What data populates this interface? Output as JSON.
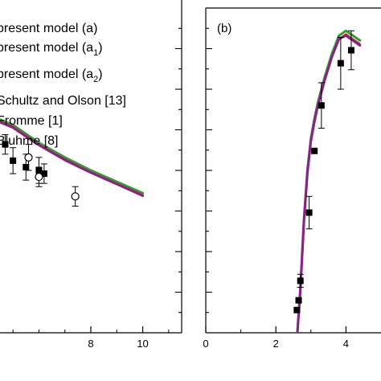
{
  "chart_data": [
    {
      "type": "line",
      "panel_label": "",
      "xlim": [
        4.5,
        11.5
      ],
      "ylim": [
        0,
        1
      ],
      "x_ticks": [
        8,
        10
      ],
      "legend": {
        "placement": "top-left",
        "entries": [
          {
            "label": "present model (a)",
            "sub": "",
            "suffix": "",
            "marker": "none"
          },
          {
            "label": "present model (a",
            "sub": "1",
            "suffix": ")",
            "marker": "none"
          },
          {
            "label": "present model (a",
            "sub": "2",
            "suffix": ")",
            "marker": "none"
          },
          {
            "label": "Schultz and Olson [13]",
            "sub": "",
            "suffix": "",
            "marker": "none"
          },
          {
            "label": "Fromme [1]",
            "sub": "",
            "suffix": "",
            "marker": "none"
          },
          {
            "label": "Bluhme [8]",
            "sub": "",
            "suffix": "",
            "marker": "none"
          }
        ]
      },
      "series": [
        {
          "color": "#2ca02c",
          "width": 3.0,
          "x": [
            4.4,
            5,
            6,
            7,
            8,
            9,
            10
          ],
          "y": [
            0.66,
            0.64,
            0.585,
            0.54,
            0.5,
            0.465,
            0.43
          ]
        },
        {
          "color": "#d62728",
          "width": 2.0,
          "x": [
            4.4,
            5,
            6,
            7,
            8,
            9,
            10
          ],
          "y": [
            0.655,
            0.635,
            0.58,
            0.535,
            0.495,
            0.46,
            0.425
          ]
        },
        {
          "color": "#8e1e8e",
          "width": 3.0,
          "x": [
            4.4,
            5,
            6,
            7,
            8,
            9,
            10
          ],
          "y": [
            0.652,
            0.632,
            0.578,
            0.532,
            0.493,
            0.458,
            0.422
          ]
        }
      ],
      "points": [
        {
          "x": 4.7,
          "y": 0.58,
          "err": 0.03,
          "marker": "square"
        },
        {
          "x": 5.0,
          "y": 0.53,
          "err": 0.04,
          "marker": "square"
        },
        {
          "x": 5.5,
          "y": 0.51,
          "err": 0.04,
          "marker": "square"
        },
        {
          "x": 6.0,
          "y": 0.5,
          "err": 0.04,
          "marker": "square"
        },
        {
          "x": 5.6,
          "y": 0.54,
          "err": 0.04,
          "marker": "circle"
        },
        {
          "x": 6.2,
          "y": 0.49,
          "err": 0.03,
          "marker": "square"
        },
        {
          "x": 6.0,
          "y": 0.48,
          "err": 0.03,
          "marker": "circle"
        },
        {
          "x": 7.4,
          "y": 0.42,
          "err": 0.03,
          "marker": "circle"
        }
      ]
    },
    {
      "type": "line",
      "panel_label": "(b)",
      "xlim": [
        0,
        5
      ],
      "ylim": [
        0,
        1
      ],
      "x_ticks": [
        0,
        2,
        4
      ],
      "series": [
        {
          "color": "#2ca02c",
          "width": 3.0,
          "x": [
            2.6,
            2.7,
            2.8,
            2.9,
            3.0,
            3.1,
            3.2,
            3.4,
            3.6,
            3.8,
            4.0,
            4.2,
            4.4
          ],
          "y": [
            -0.02,
            0.14,
            0.35,
            0.5,
            0.6,
            0.66,
            0.71,
            0.79,
            0.86,
            0.915,
            0.93,
            0.915,
            0.9
          ]
        },
        {
          "color": "#d62728",
          "width": 2.0,
          "x": [
            2.6,
            2.7,
            2.8,
            2.9,
            3.0,
            3.1,
            3.2,
            3.4,
            3.6,
            3.8,
            4.0,
            4.2,
            4.4
          ],
          "y": [
            -0.02,
            0.13,
            0.34,
            0.49,
            0.59,
            0.65,
            0.7,
            0.78,
            0.85,
            0.905,
            0.92,
            0.905,
            0.89
          ]
        },
        {
          "color": "#8e1e8e",
          "width": 3.0,
          "x": [
            2.6,
            2.7,
            2.8,
            2.9,
            3.0,
            3.1,
            3.2,
            3.4,
            3.6,
            3.8,
            4.0,
            4.2,
            4.4
          ],
          "y": [
            -0.02,
            0.13,
            0.34,
            0.49,
            0.59,
            0.65,
            0.7,
            0.78,
            0.85,
            0.905,
            0.915,
            0.9,
            0.885
          ]
        }
      ],
      "points": [
        {
          "x": 2.6,
          "y": 0.07,
          "err": 0.0,
          "marker": "square"
        },
        {
          "x": 2.65,
          "y": 0.1,
          "err": 0.0,
          "marker": "square"
        },
        {
          "x": 2.7,
          "y": 0.16,
          "err": 0.02,
          "marker": "square"
        },
        {
          "x": 2.95,
          "y": 0.37,
          "err": 0.05,
          "marker": "square"
        },
        {
          "x": 3.1,
          "y": 0.56,
          "err": 0.0,
          "marker": "square"
        },
        {
          "x": 3.3,
          "y": 0.7,
          "err": 0.07,
          "marker": "square"
        },
        {
          "x": 3.85,
          "y": 0.83,
          "err": 0.08,
          "marker": "square"
        },
        {
          "x": 4.15,
          "y": 0.87,
          "err": 0.06,
          "marker": "square"
        }
      ]
    }
  ]
}
